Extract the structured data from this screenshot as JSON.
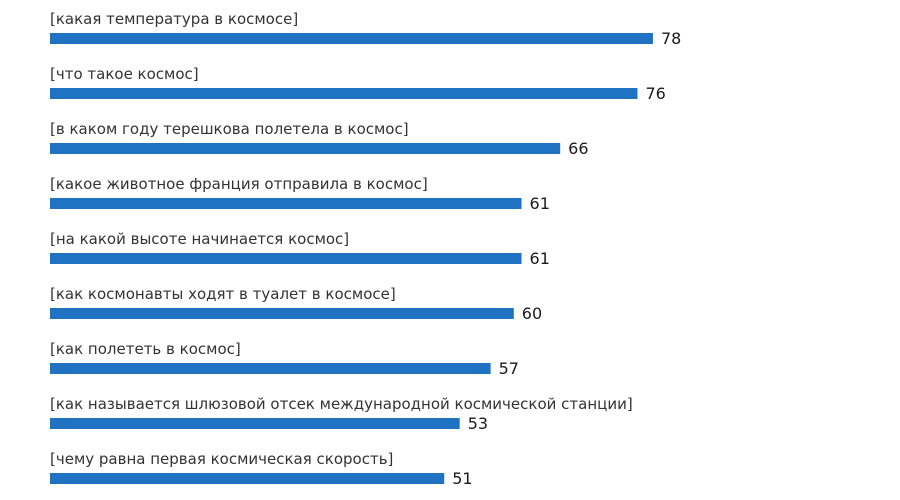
{
  "chart_data": {
    "type": "bar",
    "orientation": "horizontal",
    "categories": [
      "[какая температура в космосе]",
      "[что такое космос]",
      "[в каком году терешкова полетела в космос]",
      "[какое животное франция отправила в космос]",
      "[на какой высоте начинается космос]",
      "[как космонавты ходят в туалет в космосе]",
      "[как полететь в космос]",
      "[как называется шлюзовой отсек международной космической станции]",
      "[чему равна первая космическая скорость]"
    ],
    "values": [
      78,
      76,
      66,
      61,
      61,
      60,
      57,
      53,
      51
    ],
    "value_labels": [
      "78",
      "76",
      "66",
      "61",
      "61",
      "60",
      "57",
      "53",
      "51"
    ],
    "bar_color": "#1f73c2",
    "grid": false,
    "legend": "none"
  }
}
